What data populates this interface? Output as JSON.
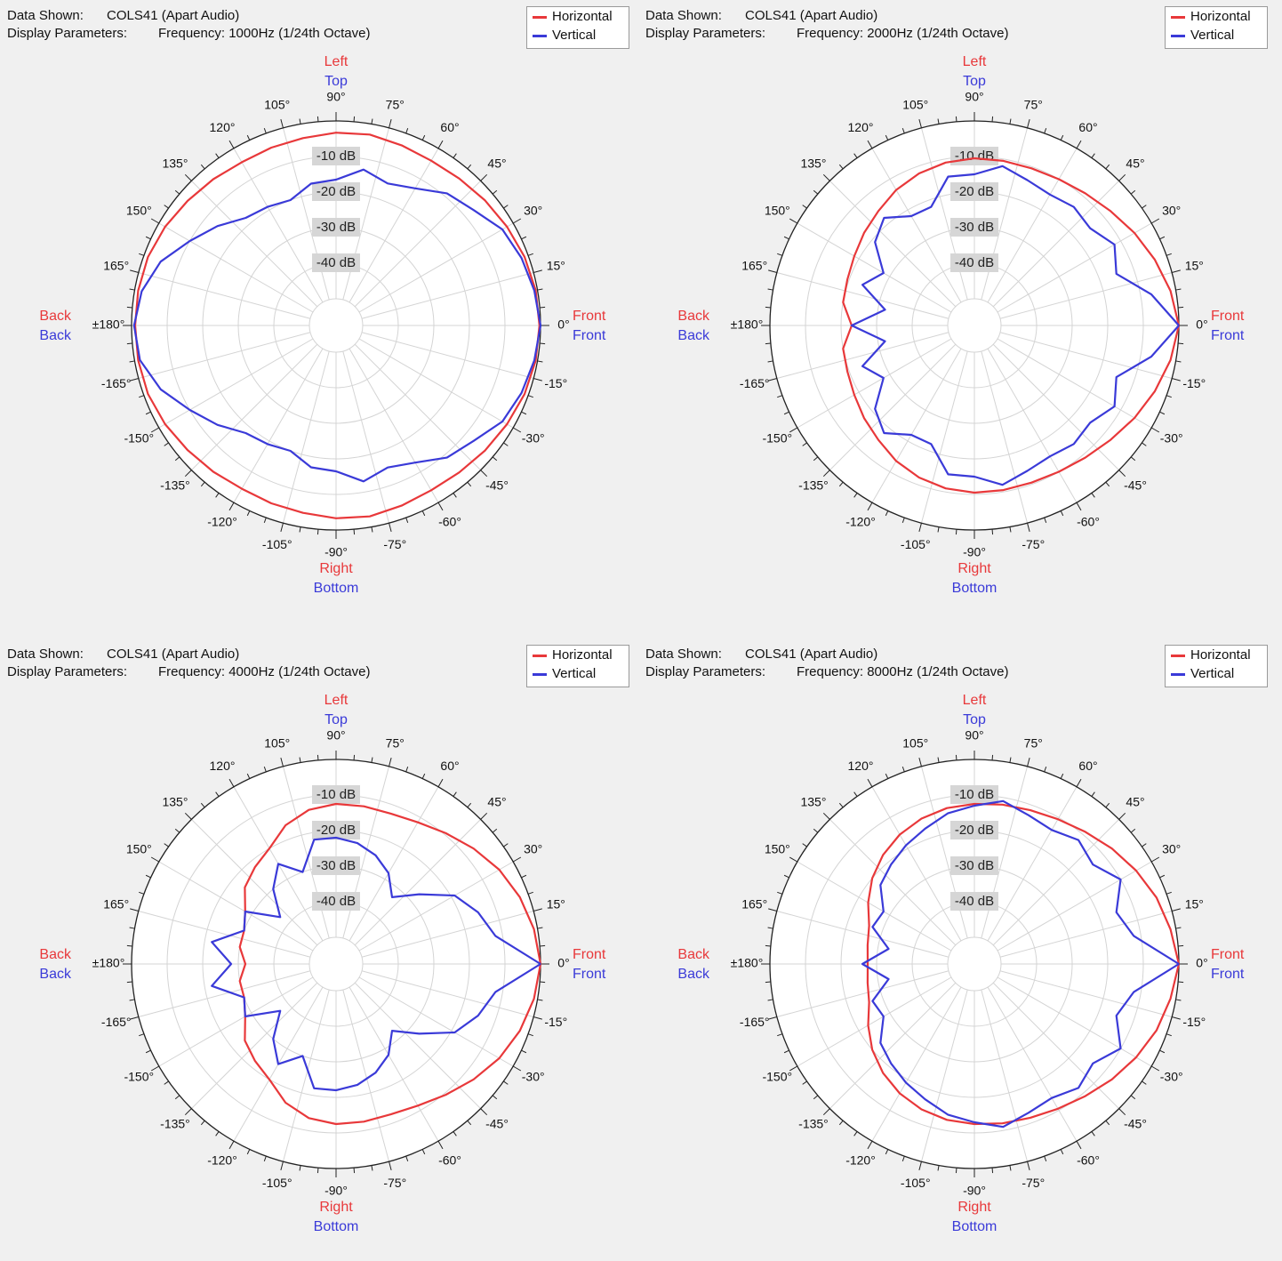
{
  "colors": {
    "horizontal": "#e8383a",
    "vertical": "#3a3ad8",
    "text": "#111111",
    "grid": "#d4d4d4"
  },
  "labels": {
    "data_shown_key": "Data Shown:",
    "display_params_key": "Display Parameters:",
    "left": "Left",
    "top": "Top",
    "right": "Right",
    "bottom": "Bottom",
    "back": "Back",
    "front": "Front"
  },
  "chart_data": [
    {
      "type": "polar",
      "data_shown": "COLS41 (Apart Audio)",
      "display_parameters": "Frequency: 1000Hz (1/24th Octave)",
      "angle_ticks": [
        "90°",
        "75°",
        "60°",
        "45°",
        "30°",
        "15°",
        "0°",
        "-15°",
        "-30°",
        "-45°",
        "-60°",
        "-75°",
        "-90°",
        "-105°",
        "-120°",
        "-135°",
        "-150°",
        "-165°",
        "±180°",
        "165°",
        "150°",
        "135°",
        "120°",
        "105°"
      ],
      "radial_ticks": [
        "-10 dB",
        "-20 dB",
        "-30 dB",
        "-40 dB"
      ],
      "r_range_db": [
        -50,
        0
      ],
      "legend": [
        "Horizontal",
        "Vertical"
      ],
      "legend_position": "top-right",
      "angles_deg": [
        0,
        10,
        20,
        30,
        40,
        50,
        60,
        70,
        80,
        90,
        100,
        110,
        120,
        130,
        140,
        150,
        160,
        170,
        180,
        190,
        200,
        210,
        220,
        230,
        240,
        250,
        260,
        270,
        280,
        290,
        300,
        310,
        320,
        330,
        340,
        350
      ],
      "series": [
        {
          "name": "Horizontal",
          "values_db": [
            -0.3,
            -0.5,
            -1.1,
            -2.0,
            -2.8,
            -3.6,
            -4.0,
            -3.6,
            -3.0,
            -3.3,
            -4.0,
            -4.3,
            -4.5,
            -3.8,
            -3.0,
            -2.0,
            -1.2,
            -1.0,
            -1.0,
            -1.0,
            -1.2,
            -2.0,
            -3.0,
            -3.8,
            -4.5,
            -4.3,
            -4.0,
            -3.3,
            -3.0,
            -3.6,
            -4.0,
            -3.6,
            -2.8,
            -2.0,
            -1.1,
            -0.5
          ]
        },
        {
          "name": "Vertical",
          "values_db": [
            0,
            -0.9,
            -2.0,
            -3.5,
            -7.0,
            -9.0,
            -13.0,
            -15.0,
            -13.0,
            -16.5,
            -17.0,
            -20.0,
            -19.0,
            -18.0,
            -14.0,
            -10.0,
            -5.0,
            -2.0,
            -0.7,
            -1.5,
            -5.0,
            -10.0,
            -14.0,
            -18.0,
            -19.0,
            -20.0,
            -17.0,
            -16.5,
            -13.0,
            -15.0,
            -13.0,
            -9.0,
            -7.0,
            -3.5,
            -2.0,
            -0.9
          ]
        }
      ]
    },
    {
      "type": "polar",
      "data_shown": "COLS41 (Apart Audio)",
      "display_parameters": "Frequency: 2000Hz (1/24th Octave)",
      "angle_ticks": [
        "90°",
        "75°",
        "60°",
        "45°",
        "30°",
        "15°",
        "0°",
        "-15°",
        "-30°",
        "-45°",
        "-60°",
        "-75°",
        "-90°",
        "-105°",
        "-120°",
        "-135°",
        "-150°",
        "-165°",
        "±180°",
        "165°",
        "150°",
        "135°",
        "120°",
        "105°"
      ],
      "radial_ticks": [
        "-10 dB",
        "-20 dB",
        "-30 dB",
        "-40 dB"
      ],
      "r_range_db": [
        -50,
        0
      ],
      "legend": [
        "Horizontal",
        "Vertical"
      ],
      "legend_position": "top-right",
      "angles_deg": [
        0,
        10,
        20,
        30,
        40,
        50,
        60,
        70,
        80,
        90,
        100,
        110,
        120,
        130,
        140,
        150,
        160,
        170,
        180,
        190,
        200,
        210,
        220,
        230,
        240,
        250,
        260,
        270,
        280,
        290,
        300,
        310,
        320,
        330,
        340,
        350
      ],
      "series": [
        {
          "name": "Horizontal",
          "values_db": [
            0,
            -1.5,
            -3.5,
            -5.5,
            -7.5,
            -9.0,
            -10.0,
            -10.5,
            -10.5,
            -10.5,
            -11.0,
            -12.0,
            -13.5,
            -15.5,
            -17.0,
            -18.5,
            -19.5,
            -20.0,
            -23.0,
            -20.0,
            -19.5,
            -18.5,
            -17.0,
            -15.5,
            -13.5,
            -12.0,
            -11.0,
            -10.5,
            -10.5,
            -10.5,
            -10.0,
            -9.0,
            -7.5,
            -5.5,
            -3.5,
            -1.5
          ]
        },
        {
          "name": "Vertical",
          "values_db": [
            0,
            -7.0,
            -15.0,
            -12.0,
            -15.0,
            -14.0,
            -15.0,
            -14.0,
            -12.0,
            -15.0,
            -15.0,
            -22.0,
            -22.0,
            -18.0,
            -21.0,
            -28.0,
            -24.0,
            -32.0,
            -23.0,
            -32.0,
            -24.0,
            -28.0,
            -21.0,
            -18.0,
            -22.0,
            -22.0,
            -15.0,
            -15.0,
            -12.0,
            -14.0,
            -15.0,
            -14.0,
            -15.0,
            -12.0,
            -15.0,
            -7.0
          ]
        }
      ]
    },
    {
      "type": "polar",
      "data_shown": "COLS41 (Apart Audio)",
      "display_parameters": "Frequency: 4000Hz (1/24th Octave)",
      "angle_ticks": [
        "90°",
        "75°",
        "60°",
        "45°",
        "30°",
        "15°",
        "0°",
        "-15°",
        "-30°",
        "-45°",
        "-60°",
        "-75°",
        "-90°",
        "-105°",
        "-120°",
        "-135°",
        "-150°",
        "-165°",
        "±180°",
        "165°",
        "150°",
        "135°",
        "120°",
        "105°"
      ],
      "radial_ticks": [
        "-10 dB",
        "-20 dB",
        "-30 dB",
        "-40 dB"
      ],
      "r_range_db": [
        -50,
        0
      ],
      "legend": [
        "Horizontal",
        "Vertical"
      ],
      "legend_position": "top-right",
      "angles_deg": [
        0,
        10,
        20,
        30,
        40,
        50,
        60,
        70,
        80,
        90,
        100,
        110,
        120,
        130,
        140,
        150,
        160,
        170,
        180,
        190,
        200,
        210,
        220,
        230,
        240,
        250,
        260,
        270,
        280,
        290,
        300,
        310,
        320,
        330,
        340,
        350
      ],
      "series": [
        {
          "name": "Horizontal",
          "values_db": [
            0,
            -1.0,
            -2.5,
            -4.5,
            -7.0,
            -9.5,
            -11.5,
            -12.5,
            -12.5,
            -12.5,
            -13.5,
            -16.0,
            -20.0,
            -22.0,
            -24.0,
            -28.0,
            -30.0,
            -30.0,
            -32.0,
            -30.0,
            -30.0,
            -28.0,
            -24.0,
            -22.0,
            -20.0,
            -16.0,
            -13.5,
            -12.5,
            -12.5,
            -12.5,
            -11.5,
            -9.5,
            -7.0,
            -4.5,
            -2.5,
            -1.0
          ]
        },
        {
          "name": "Vertical",
          "values_db": [
            0,
            -12.0,
            -15.0,
            -19.0,
            -27.0,
            -33.0,
            -28.0,
            -25.0,
            -23.0,
            -22.0,
            -22.0,
            -30.0,
            -25.0,
            -30.0,
            -37.0,
            -28.0,
            -30.0,
            -22.0,
            -28.0,
            -22.0,
            -30.0,
            -28.0,
            -37.0,
            -30.0,
            -25.0,
            -30.0,
            -22.0,
            -22.0,
            -23.0,
            -25.0,
            -28.0,
            -33.0,
            -27.0,
            -19.0,
            -15.0,
            -12.0
          ]
        }
      ]
    },
    {
      "type": "polar",
      "data_shown": "COLS41 (Apart Audio)",
      "display_parameters": "Frequency: 8000Hz (1/24th Octave)",
      "angle_ticks": [
        "90°",
        "75°",
        "60°",
        "45°",
        "30°",
        "15°",
        "0°",
        "-15°",
        "-30°",
        "-45°",
        "-60°",
        "-75°",
        "-90°",
        "-105°",
        "-120°",
        "-135°",
        "-150°",
        "-165°",
        "±180°",
        "165°",
        "150°",
        "135°",
        "120°",
        "105°"
      ],
      "radial_ticks": [
        "-10 dB",
        "-20 dB",
        "-30 dB",
        "-40 dB"
      ],
      "r_range_db": [
        -50,
        0
      ],
      "legend": [
        "Horizontal",
        "Vertical"
      ],
      "legend_position": "top-right",
      "angles_deg": [
        0,
        10,
        20,
        30,
        40,
        50,
        60,
        70,
        80,
        90,
        100,
        110,
        120,
        130,
        140,
        150,
        160,
        170,
        180,
        190,
        200,
        210,
        220,
        230,
        240,
        250,
        260,
        270,
        280,
        290,
        300,
        310,
        320,
        330,
        340,
        350
      ],
      "series": [
        {
          "name": "Horizontal",
          "values_db": [
            0,
            -1.5,
            -3.0,
            -5.0,
            -7.0,
            -9.0,
            -10.5,
            -11.5,
            -12.0,
            -12.5,
            -13.0,
            -14.0,
            -15.5,
            -17.5,
            -20.0,
            -23.0,
            -26.0,
            -27.0,
            -27.5,
            -27.0,
            -26.0,
            -23.0,
            -20.0,
            -17.5,
            -15.5,
            -14.0,
            -13.0,
            -12.5,
            -12.0,
            -11.5,
            -10.5,
            -9.0,
            -7.0,
            -5.0,
            -3.0,
            -1.5
          ]
        },
        {
          "name": "Vertical",
          "values_db": [
            0,
            -12.0,
            -15.0,
            -10.0,
            -14.0,
            -12.0,
            -14.0,
            -13.0,
            -11.0,
            -13.0,
            -14.5,
            -17.0,
            -19.0,
            -21.0,
            -23.0,
            -28.0,
            -27.0,
            -33.0,
            -26.0,
            -33.0,
            -27.0,
            -28.0,
            -23.0,
            -21.0,
            -19.0,
            -17.0,
            -14.5,
            -13.0,
            -11.0,
            -13.0,
            -14.0,
            -12.0,
            -14.0,
            -10.0,
            -15.0,
            -12.0
          ]
        }
      ]
    }
  ]
}
